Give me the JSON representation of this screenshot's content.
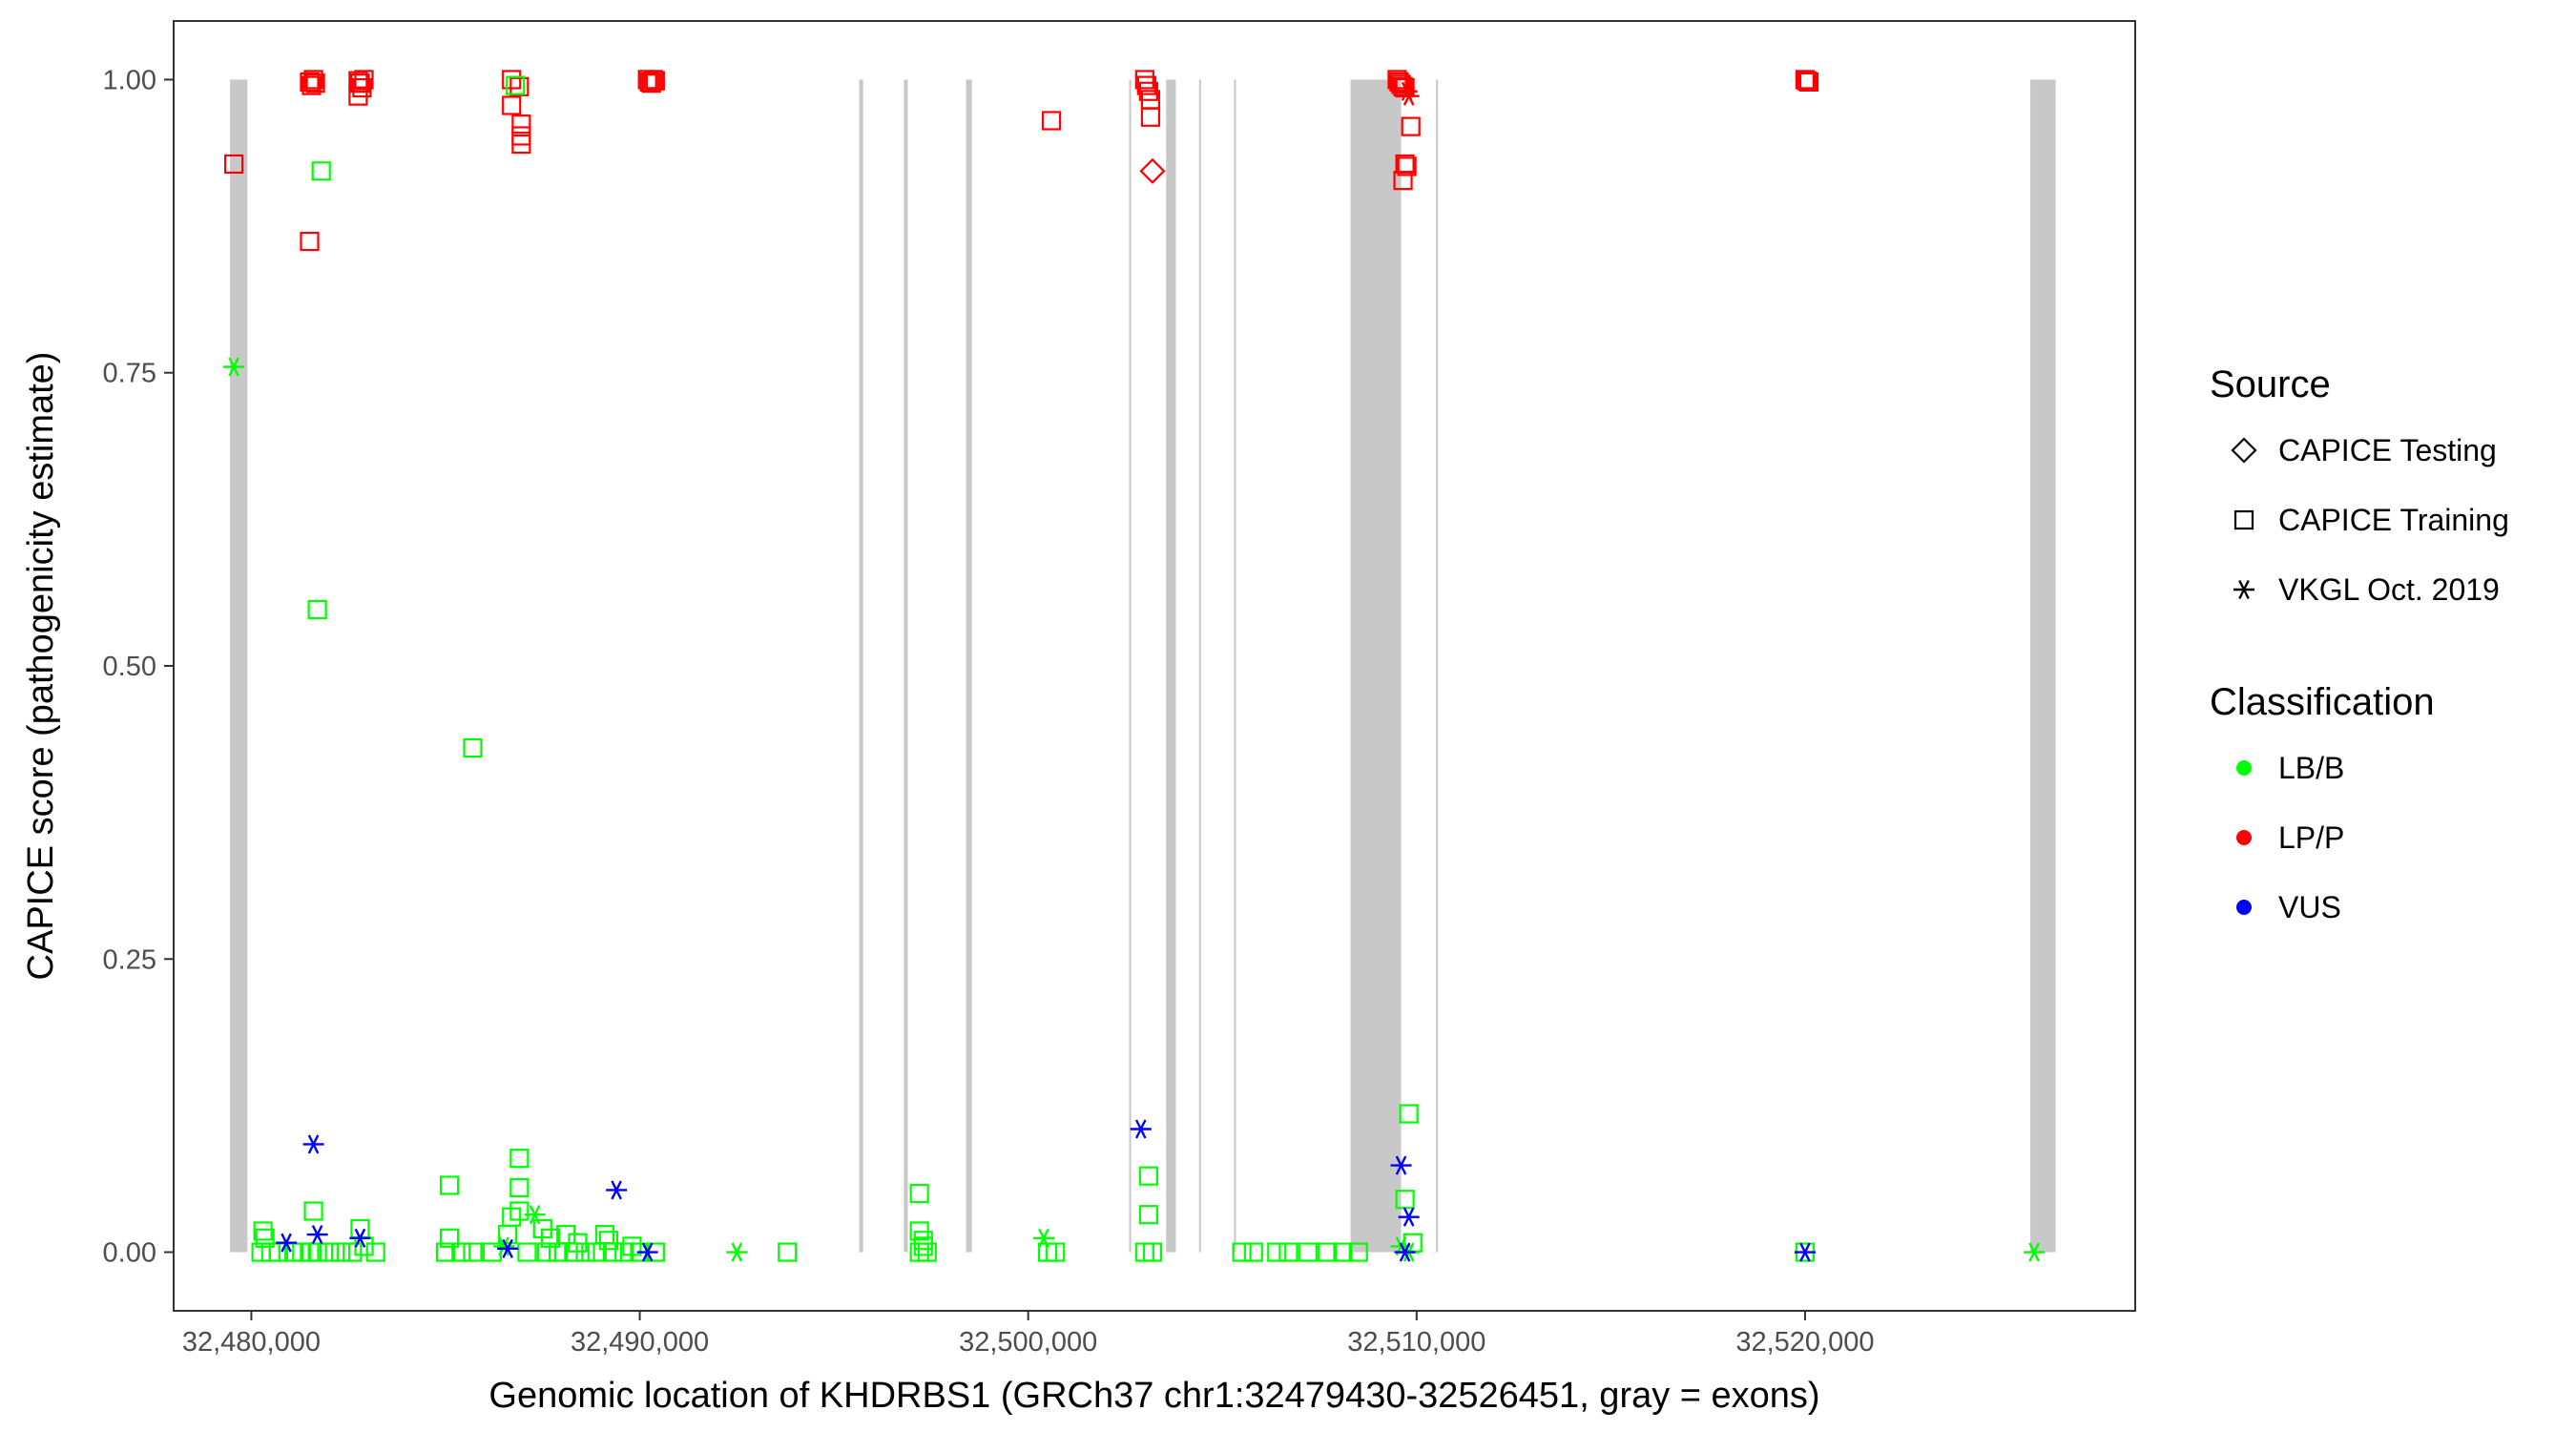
{
  "chart_data": {
    "type": "scatter",
    "xlabel": "Genomic location of KHDRBS1 (GRCh37 chr1:32479430-32526451, gray = exons)",
    "ylabel": "CAPICE score (pathogenicity estimate)",
    "xlim": [
      32478000,
      32528500
    ],
    "ylim": [
      -0.05,
      1.05
    ],
    "x_ticks": [
      32480000,
      32490000,
      32500000,
      32510000,
      32520000
    ],
    "x_tick_labels": [
      "32,480,000",
      "32,490,000",
      "32,500,000",
      "32,510,000",
      "32,520,000"
    ],
    "y_ticks": [
      0,
      0.25,
      0.5,
      0.75,
      1
    ],
    "y_tick_labels": [
      "0.00",
      "0.25",
      "0.50",
      "0.75",
      "1.00"
    ],
    "grid": false,
    "legend_position": "right",
    "exons": [
      [
        32479450,
        32479900
      ],
      [
        32495650,
        32495750
      ],
      [
        32496800,
        32496900
      ],
      [
        32498400,
        32498550
      ],
      [
        32502600,
        32502650
      ],
      [
        32503550,
        32503800
      ],
      [
        32504400,
        32504450
      ],
      [
        32505300,
        32505350
      ],
      [
        32508300,
        32509600
      ],
      [
        32510500,
        32510550
      ],
      [
        32525800,
        32526451
      ]
    ],
    "legends": [
      {
        "title": "Source",
        "entries": [
          {
            "label": "CAPICE Testing",
            "shape": "diamond"
          },
          {
            "label": "CAPICE Training",
            "shape": "square"
          },
          {
            "label": "VKGL Oct. 2019",
            "shape": "asterisk"
          }
        ]
      },
      {
        "title": "Classification",
        "entries": [
          {
            "label": "LB/B",
            "color": "#00ff00"
          },
          {
            "label": "LP/P",
            "color": "#ff0000"
          },
          {
            "label": "VUS",
            "color": "#0000ff"
          }
        ]
      }
    ],
    "series": [
      {
        "name": "LP/P",
        "color": "#ff0000",
        "points": [
          {
            "x": 32479550,
            "y": 0.928,
            "shape": "square"
          },
          {
            "x": 32481500,
            "y": 0.998,
            "shape": "square"
          },
          {
            "x": 32481550,
            "y": 0.995,
            "shape": "square"
          },
          {
            "x": 32481600,
            "y": 1.0,
            "shape": "square"
          },
          {
            "x": 32481650,
            "y": 0.997,
            "shape": "square"
          },
          {
            "x": 32481500,
            "y": 0.862,
            "shape": "square"
          },
          {
            "x": 32482750,
            "y": 0.999,
            "shape": "square"
          },
          {
            "x": 32482800,
            "y": 0.997,
            "shape": "square"
          },
          {
            "x": 32482850,
            "y": 0.993,
            "shape": "square"
          },
          {
            "x": 32482900,
            "y": 1.0,
            "shape": "square"
          },
          {
            "x": 32482750,
            "y": 0.986,
            "shape": "square"
          },
          {
            "x": 32486700,
            "y": 1.0,
            "shape": "square"
          },
          {
            "x": 32486700,
            "y": 0.978,
            "shape": "square"
          },
          {
            "x": 32486900,
            "y": 0.994,
            "shape": "square"
          },
          {
            "x": 32486950,
            "y": 0.962,
            "shape": "square"
          },
          {
            "x": 32486950,
            "y": 0.952,
            "shape": "square"
          },
          {
            "x": 32486950,
            "y": 0.945,
            "shape": "square"
          },
          {
            "x": 32490200,
            "y": 1.0,
            "shape": "square"
          },
          {
            "x": 32490250,
            "y": 0.998,
            "shape": "square"
          },
          {
            "x": 32490300,
            "y": 0.997,
            "shape": "square"
          },
          {
            "x": 32490350,
            "y": 1.0,
            "shape": "square"
          },
          {
            "x": 32490400,
            "y": 0.999,
            "shape": "square"
          },
          {
            "x": 32500600,
            "y": 0.965,
            "shape": "square"
          },
          {
            "x": 32503000,
            "y": 1.0,
            "shape": "square"
          },
          {
            "x": 32503050,
            "y": 0.995,
            "shape": "square"
          },
          {
            "x": 32503100,
            "y": 0.99,
            "shape": "square"
          },
          {
            "x": 32503150,
            "y": 0.983,
            "shape": "square"
          },
          {
            "x": 32503150,
            "y": 0.968,
            "shape": "square"
          },
          {
            "x": 32503200,
            "y": 0.922,
            "shape": "diamond"
          },
          {
            "x": 32509500,
            "y": 1.0,
            "shape": "square"
          },
          {
            "x": 32509550,
            "y": 0.998,
            "shape": "square"
          },
          {
            "x": 32509600,
            "y": 0.996,
            "shape": "square"
          },
          {
            "x": 32509650,
            "y": 0.994,
            "shape": "square"
          },
          {
            "x": 32509700,
            "y": 0.993,
            "shape": "square"
          },
          {
            "x": 32509750,
            "y": 0.99,
            "shape": "asterisk"
          },
          {
            "x": 32509800,
            "y": 0.986,
            "shape": "asterisk"
          },
          {
            "x": 32509850,
            "y": 0.96,
            "shape": "square"
          },
          {
            "x": 32509700,
            "y": 0.928,
            "shape": "square"
          },
          {
            "x": 32509750,
            "y": 0.926,
            "shape": "square"
          },
          {
            "x": 32509650,
            "y": 0.914,
            "shape": "square"
          },
          {
            "x": 32520000,
            "y": 1.0,
            "shape": "square"
          },
          {
            "x": 32520050,
            "y": 0.999,
            "shape": "square"
          },
          {
            "x": 32520100,
            "y": 0.998,
            "shape": "square"
          }
        ]
      },
      {
        "name": "LB/B",
        "color": "#00ff00",
        "points": [
          {
            "x": 32479550,
            "y": 0.755,
            "shape": "asterisk"
          },
          {
            "x": 32481800,
            "y": 0.922,
            "shape": "square"
          },
          {
            "x": 32481700,
            "y": 0.548,
            "shape": "square"
          },
          {
            "x": 32481600,
            "y": 0.035,
            "shape": "square"
          },
          {
            "x": 32486800,
            "y": 0.995,
            "shape": "square"
          },
          {
            "x": 32485700,
            "y": 0.43,
            "shape": "square"
          },
          {
            "x": 32480300,
            "y": 0.018,
            "shape": "square"
          },
          {
            "x": 32480350,
            "y": 0.012,
            "shape": "square"
          },
          {
            "x": 32480250,
            "y": 0.0,
            "shape": "square"
          },
          {
            "x": 32480500,
            "y": 0.0,
            "shape": "square"
          },
          {
            "x": 32480700,
            "y": 0.0,
            "shape": "square"
          },
          {
            "x": 32481100,
            "y": 0.0,
            "shape": "square"
          },
          {
            "x": 32481300,
            "y": 0.0,
            "shape": "square"
          },
          {
            "x": 32481500,
            "y": 0.0,
            "shape": "square"
          },
          {
            "x": 32481700,
            "y": 0.0,
            "shape": "square"
          },
          {
            "x": 32482000,
            "y": 0.0,
            "shape": "square"
          },
          {
            "x": 32482300,
            "y": 0.0,
            "shape": "square"
          },
          {
            "x": 32482600,
            "y": 0.0,
            "shape": "square"
          },
          {
            "x": 32482800,
            "y": 0.02,
            "shape": "square"
          },
          {
            "x": 32482900,
            "y": 0.005,
            "shape": "square"
          },
          {
            "x": 32483200,
            "y": 0.0,
            "shape": "square"
          },
          {
            "x": 32485100,
            "y": 0.057,
            "shape": "square"
          },
          {
            "x": 32485100,
            "y": 0.012,
            "shape": "square"
          },
          {
            "x": 32485000,
            "y": 0.0,
            "shape": "square"
          },
          {
            "x": 32485400,
            "y": 0.0,
            "shape": "square"
          },
          {
            "x": 32485700,
            "y": 0.0,
            "shape": "square"
          },
          {
            "x": 32486200,
            "y": 0.0,
            "shape": "square"
          },
          {
            "x": 32486500,
            "y": 0.005,
            "shape": "asterisk"
          },
          {
            "x": 32486600,
            "y": 0.015,
            "shape": "square"
          },
          {
            "x": 32486700,
            "y": 0.03,
            "shape": "square"
          },
          {
            "x": 32486900,
            "y": 0.08,
            "shape": "square"
          },
          {
            "x": 32486900,
            "y": 0.055,
            "shape": "square"
          },
          {
            "x": 32486900,
            "y": 0.035,
            "shape": "square"
          },
          {
            "x": 32487100,
            "y": 0.0,
            "shape": "square"
          },
          {
            "x": 32487300,
            "y": 0.032,
            "shape": "asterisk"
          },
          {
            "x": 32487500,
            "y": 0.02,
            "shape": "square"
          },
          {
            "x": 32487700,
            "y": 0.012,
            "shape": "square"
          },
          {
            "x": 32487600,
            "y": 0.0,
            "shape": "square"
          },
          {
            "x": 32487900,
            "y": 0.0,
            "shape": "square"
          },
          {
            "x": 32488100,
            "y": 0.015,
            "shape": "square"
          },
          {
            "x": 32488300,
            "y": 0.0,
            "shape": "square"
          },
          {
            "x": 32488400,
            "y": 0.008,
            "shape": "square"
          },
          {
            "x": 32488600,
            "y": 0.0,
            "shape": "square"
          },
          {
            "x": 32488900,
            "y": 0.0,
            "shape": "square"
          },
          {
            "x": 32489100,
            "y": 0.015,
            "shape": "square"
          },
          {
            "x": 32489200,
            "y": 0.01,
            "shape": "square"
          },
          {
            "x": 32489300,
            "y": 0.0,
            "shape": "square"
          },
          {
            "x": 32489600,
            "y": 0.0,
            "shape": "square"
          },
          {
            "x": 32489800,
            "y": 0.005,
            "shape": "square"
          },
          {
            "x": 32490000,
            "y": 0.0,
            "shape": "square"
          },
          {
            "x": 32490400,
            "y": 0.0,
            "shape": "square"
          },
          {
            "x": 32492500,
            "y": 0.0,
            "shape": "asterisk"
          },
          {
            "x": 32493800,
            "y": 0.0,
            "shape": "square"
          },
          {
            "x": 32497200,
            "y": 0.05,
            "shape": "square"
          },
          {
            "x": 32497200,
            "y": 0.018,
            "shape": "square"
          },
          {
            "x": 32497300,
            "y": 0.01,
            "shape": "square"
          },
          {
            "x": 32497200,
            "y": 0.0,
            "shape": "square"
          },
          {
            "x": 32497300,
            "y": 0.005,
            "shape": "square"
          },
          {
            "x": 32497400,
            "y": 0.0,
            "shape": "square"
          },
          {
            "x": 32500400,
            "y": 0.012,
            "shape": "asterisk"
          },
          {
            "x": 32500500,
            "y": 0.0,
            "shape": "square"
          },
          {
            "x": 32500700,
            "y": 0.0,
            "shape": "square"
          },
          {
            "x": 32503100,
            "y": 0.065,
            "shape": "square"
          },
          {
            "x": 32503100,
            "y": 0.032,
            "shape": "square"
          },
          {
            "x": 32503000,
            "y": 0.0,
            "shape": "square"
          },
          {
            "x": 32503200,
            "y": 0.0,
            "shape": "square"
          },
          {
            "x": 32505500,
            "y": 0.0,
            "shape": "square"
          },
          {
            "x": 32505800,
            "y": 0.0,
            "shape": "square"
          },
          {
            "x": 32506400,
            "y": 0.0,
            "shape": "square"
          },
          {
            "x": 32506700,
            "y": 0.0,
            "shape": "square"
          },
          {
            "x": 32507200,
            "y": 0.0,
            "shape": "square"
          },
          {
            "x": 32507700,
            "y": 0.0,
            "shape": "square"
          },
          {
            "x": 32508100,
            "y": 0.0,
            "shape": "square"
          },
          {
            "x": 32508500,
            "y": 0.0,
            "shape": "square"
          },
          {
            "x": 32509800,
            "y": 0.118,
            "shape": "square"
          },
          {
            "x": 32509700,
            "y": 0.045,
            "shape": "square"
          },
          {
            "x": 32509600,
            "y": 0.005,
            "shape": "asterisk"
          },
          {
            "x": 32509800,
            "y": 0.0,
            "shape": "asterisk"
          },
          {
            "x": 32509900,
            "y": 0.008,
            "shape": "square"
          },
          {
            "x": 32520000,
            "y": 0.0,
            "shape": "square"
          },
          {
            "x": 32525900,
            "y": 0.0,
            "shape": "asterisk"
          }
        ]
      },
      {
        "name": "VUS",
        "color": "#0000ff",
        "points": [
          {
            "x": 32481600,
            "y": 0.092,
            "shape": "asterisk"
          },
          {
            "x": 32480900,
            "y": 0.008,
            "shape": "asterisk"
          },
          {
            "x": 32481700,
            "y": 0.015,
            "shape": "asterisk"
          },
          {
            "x": 32482800,
            "y": 0.012,
            "shape": "asterisk"
          },
          {
            "x": 32486600,
            "y": 0.003,
            "shape": "asterisk"
          },
          {
            "x": 32489400,
            "y": 0.053,
            "shape": "asterisk"
          },
          {
            "x": 32490200,
            "y": 0.0,
            "shape": "asterisk"
          },
          {
            "x": 32502900,
            "y": 0.105,
            "shape": "asterisk"
          },
          {
            "x": 32509600,
            "y": 0.074,
            "shape": "asterisk"
          },
          {
            "x": 32509800,
            "y": 0.03,
            "shape": "asterisk"
          },
          {
            "x": 32509700,
            "y": 0.0,
            "shape": "asterisk"
          },
          {
            "x": 32520000,
            "y": 0.0,
            "shape": "asterisk"
          }
        ]
      }
    ]
  }
}
